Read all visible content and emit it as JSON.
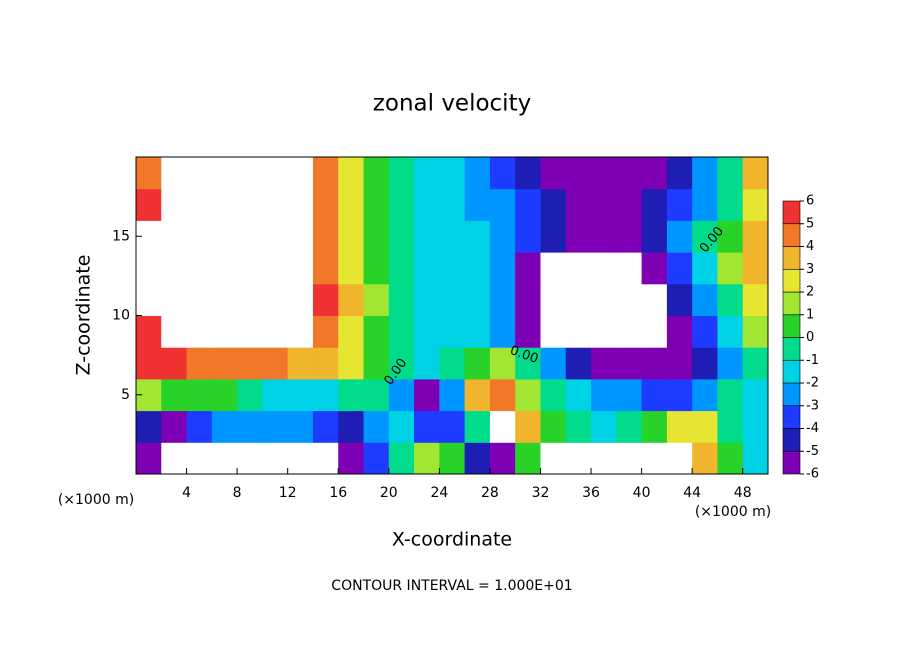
{
  "chart_data": {
    "type": "heatmap",
    "title": "zonal velocity",
    "x_label": "X-coordinate",
    "y_label": "Z-coordinate",
    "x_unit": "(×1000 m)",
    "y_unit": "(×1000 m)",
    "footer": "CONTOUR INTERVAL = 1.000E+01",
    "contour_labels": [
      "0.00",
      "0.00",
      "0.00"
    ],
    "xlim": [
      0,
      50
    ],
    "ylim": [
      0,
      20
    ],
    "xticks": [
      4,
      8,
      12,
      16,
      20,
      24,
      28,
      32,
      36,
      40,
      44,
      48
    ],
    "yticks": [
      5,
      10,
      15
    ],
    "x": [
      1,
      3,
      5,
      7,
      9,
      11,
      13,
      15,
      17,
      19,
      21,
      23,
      25,
      27,
      29,
      31,
      33,
      35,
      37,
      39,
      41,
      43,
      45,
      47,
      49
    ],
    "y": [
      1,
      3,
      5,
      7,
      9,
      11,
      13,
      15,
      17,
      19
    ],
    "z": [
      [
        -5,
        -7,
        -8,
        8,
        8,
        8,
        8,
        8,
        -5,
        -3,
        0,
        2,
        1,
        -4,
        -5,
        1,
        8,
        8,
        8,
        8,
        8,
        8,
        4,
        1,
        -1
      ],
      [
        -4,
        -5,
        -3,
        -2,
        -2,
        -2,
        -2,
        -3,
        -4,
        -2,
        -1,
        -3,
        -3,
        0,
        7,
        4,
        1,
        0,
        -1,
        0,
        1,
        3,
        3,
        0,
        -1
      ],
      [
        2,
        1,
        1,
        1,
        0,
        -1,
        -1,
        -1,
        0,
        0,
        -2,
        -5,
        -2,
        4,
        5,
        2,
        0,
        -1,
        -2,
        -2,
        -3,
        -3,
        -2,
        0,
        -1
      ],
      [
        6,
        6,
        5,
        5,
        5,
        5,
        4,
        4,
        3,
        1,
        0,
        -1,
        0,
        1,
        2,
        0,
        -2,
        -4,
        -6,
        -6,
        -6,
        -5,
        -4,
        -2,
        0
      ],
      [
        6,
        8,
        8,
        8,
        8,
        8,
        8,
        5,
        3,
        1,
        0,
        -1,
        -1,
        -1,
        -2,
        -5,
        -8,
        -8,
        -8,
        -8,
        -8,
        -5,
        -3,
        -1,
        2
      ],
      [
        7,
        8,
        8,
        8,
        8,
        8,
        8,
        6,
        4,
        2,
        0,
        -1,
        -1,
        -1,
        -2,
        -6,
        -8,
        -8,
        -8,
        -8,
        -8,
        -4,
        -2,
        0,
        3
      ],
      [
        8,
        8,
        8,
        8,
        8,
        8,
        8,
        5,
        3,
        1,
        0,
        -1,
        -1,
        -1,
        -2,
        -5,
        -8,
        -8,
        -8,
        -8,
        -6,
        -3,
        -1,
        2,
        4
      ],
      [
        8,
        8,
        8,
        8,
        8,
        8,
        8,
        5,
        3,
        1,
        0,
        -1,
        -1,
        -1,
        -2,
        -3,
        -4,
        -5,
        -5,
        -5,
        -4,
        -2,
        0,
        1,
        4
      ],
      [
        6,
        8,
        8,
        8,
        8,
        8,
        8,
        5,
        3,
        1,
        0,
        -1,
        -1,
        -2,
        -2,
        -3,
        -4,
        -5,
        -5,
        -5,
        -4,
        -3,
        -2,
        0,
        3
      ],
      [
        5,
        8,
        8,
        8,
        8,
        8,
        8,
        5,
        3,
        1,
        0,
        -1,
        -1,
        -2,
        -3,
        -4,
        -5,
        -5,
        -6,
        -6,
        -5,
        -4,
        -2,
        0,
        4
      ]
    ],
    "colorbar_levels": [
      -6,
      -5,
      -4,
      -3,
      -2,
      -1,
      0,
      1,
      2,
      3,
      4,
      5,
      6
    ],
    "colors": [
      "#7d00b4",
      "#1e1eb4",
      "#1e3cff",
      "#0096ff",
      "#00d2e6",
      "#00dc8c",
      "#28d228",
      "#a0e632",
      "#e6e632",
      "#f0b42d",
      "#f07828",
      "#f03232",
      "#f4a0a0"
    ],
    "out_of_range_color": "#ffffff"
  }
}
